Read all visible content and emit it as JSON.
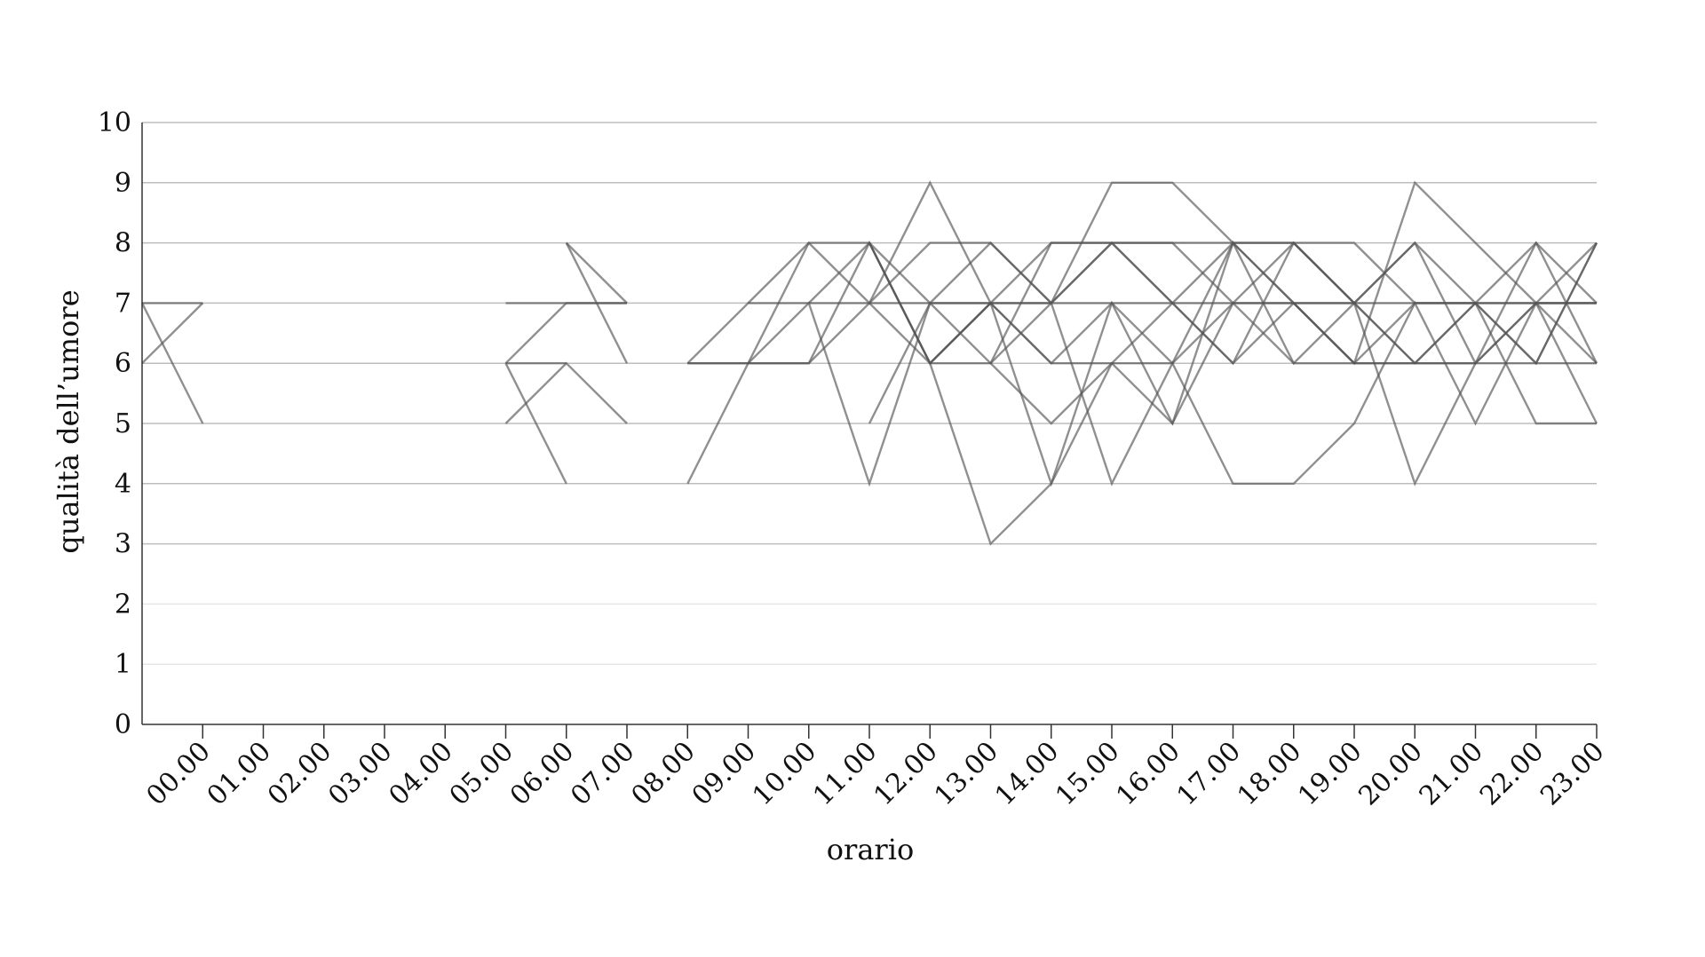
{
  "chart_data": {
    "type": "line",
    "title": "",
    "xlabel": "orario",
    "ylabel": "qualità dell’umore",
    "categories": [
      "00.00",
      "01.00",
      "02.00",
      "03.00",
      "04.00",
      "05.00",
      "06.00",
      "07.00",
      "08.00",
      "09.00",
      "10.00",
      "11.00",
      "12.00",
      "13.00",
      "14.00",
      "15.00",
      "16.00",
      "17.00",
      "18.00",
      "19.00",
      "20.00",
      "21.00",
      "22.00",
      "23.00"
    ],
    "yticks": [
      0,
      1,
      2,
      3,
      4,
      5,
      6,
      7,
      8,
      9,
      10
    ],
    "ylim": [
      0,
      10
    ],
    "grid": true,
    "legend": "none",
    "line_color": "#555555",
    "series": [
      {
        "points": [
          [
            -1,
            7
          ],
          [
            0,
            7
          ]
        ]
      },
      {
        "points": [
          [
            -1,
            6
          ],
          [
            0,
            7
          ]
        ]
      },
      {
        "points": [
          [
            -1,
            7
          ],
          [
            0,
            5
          ]
        ]
      },
      {
        "points": [
          [
            5,
            7
          ],
          [
            7,
            7
          ]
        ]
      },
      {
        "points": [
          [
            5,
            6
          ],
          [
            6,
            7
          ],
          [
            7,
            7
          ]
        ]
      },
      {
        "points": [
          [
            5,
            5
          ],
          [
            6,
            6
          ],
          [
            7,
            5
          ]
        ]
      },
      {
        "points": [
          [
            5,
            6
          ],
          [
            6,
            4
          ]
        ]
      },
      {
        "points": [
          [
            5,
            6
          ],
          [
            6,
            6
          ]
        ]
      },
      {
        "points": [
          [
            6,
            8
          ],
          [
            7,
            6
          ]
        ]
      },
      {
        "points": [
          [
            6,
            8
          ],
          [
            7,
            7
          ]
        ]
      },
      {
        "points": [
          [
            8,
            6
          ],
          [
            10,
            6
          ],
          [
            11,
            7
          ],
          [
            12,
            6
          ],
          [
            13,
            7
          ],
          [
            14,
            6
          ],
          [
            15,
            6
          ],
          [
            16,
            6
          ],
          [
            17,
            7
          ],
          [
            18,
            7
          ],
          [
            19,
            6
          ],
          [
            20,
            6
          ],
          [
            21,
            6
          ],
          [
            22,
            6
          ],
          [
            23,
            6
          ]
        ]
      },
      {
        "points": [
          [
            8,
            6
          ],
          [
            9,
            7
          ],
          [
            10,
            7
          ],
          [
            11,
            7
          ],
          [
            12,
            7
          ],
          [
            13,
            7
          ],
          [
            14,
            7
          ],
          [
            15,
            7
          ],
          [
            16,
            7
          ],
          [
            17,
            7
          ],
          [
            18,
            7
          ],
          [
            19,
            7
          ],
          [
            20,
            7
          ],
          [
            21,
            7
          ],
          [
            22,
            7
          ],
          [
            23,
            7
          ]
        ]
      },
      {
        "points": [
          [
            8,
            4
          ],
          [
            9,
            6
          ],
          [
            10,
            7
          ],
          [
            11,
            4
          ],
          [
            12,
            7
          ],
          [
            13,
            7
          ],
          [
            14,
            7
          ],
          [
            15,
            8
          ],
          [
            16,
            8
          ],
          [
            17,
            7
          ],
          [
            18,
            8
          ],
          [
            19,
            7
          ],
          [
            20,
            8
          ],
          [
            21,
            7
          ],
          [
            22,
            8
          ],
          [
            23,
            6
          ]
        ]
      },
      {
        "points": [
          [
            8,
            6
          ],
          [
            9,
            6
          ],
          [
            10,
            8
          ],
          [
            11,
            8
          ],
          [
            12,
            7
          ],
          [
            13,
            6
          ],
          [
            14,
            7
          ],
          [
            15,
            8
          ],
          [
            16,
            7
          ],
          [
            17,
            8
          ],
          [
            18,
            8
          ],
          [
            19,
            8
          ],
          [
            20,
            7
          ],
          [
            21,
            7
          ],
          [
            22,
            7
          ],
          [
            23,
            8
          ]
        ]
      },
      {
        "points": [
          [
            9,
            7
          ],
          [
            10,
            8
          ],
          [
            11,
            7
          ],
          [
            12,
            9
          ],
          [
            13,
            7
          ],
          [
            14,
            8
          ],
          [
            15,
            8
          ],
          [
            16,
            8
          ],
          [
            17,
            8
          ],
          [
            18,
            7
          ],
          [
            19,
            6
          ],
          [
            20,
            9
          ],
          [
            21,
            8
          ],
          [
            22,
            7
          ],
          [
            23,
            7
          ]
        ]
      },
      {
        "points": [
          [
            9,
            6
          ],
          [
            10,
            6
          ],
          [
            11,
            8
          ],
          [
            12,
            6
          ],
          [
            13,
            7
          ],
          [
            14,
            6
          ],
          [
            15,
            7
          ],
          [
            16,
            6
          ],
          [
            17,
            8
          ],
          [
            18,
            6
          ],
          [
            19,
            7
          ],
          [
            20,
            8
          ],
          [
            21,
            6
          ],
          [
            22,
            7
          ],
          [
            23,
            5
          ]
        ]
      },
      {
        "points": [
          [
            10,
            7
          ],
          [
            11,
            8
          ],
          [
            12,
            6
          ],
          [
            13,
            6
          ],
          [
            14,
            5
          ],
          [
            15,
            6
          ],
          [
            16,
            5
          ],
          [
            17,
            8
          ],
          [
            18,
            7
          ],
          [
            19,
            6
          ],
          [
            20,
            6
          ],
          [
            21,
            7
          ],
          [
            22,
            5
          ],
          [
            23,
            5
          ]
        ]
      },
      {
        "points": [
          [
            11,
            5
          ],
          [
            12,
            7
          ],
          [
            13,
            8
          ],
          [
            14,
            7
          ],
          [
            15,
            4
          ],
          [
            16,
            6
          ],
          [
            17,
            4
          ],
          [
            18,
            4
          ],
          [
            19,
            5
          ],
          [
            20,
            7
          ],
          [
            21,
            5
          ],
          [
            22,
            7
          ],
          [
            23,
            6
          ]
        ]
      },
      {
        "points": [
          [
            11,
            7
          ],
          [
            12,
            8
          ],
          [
            13,
            8
          ],
          [
            14,
            7
          ],
          [
            15,
            9
          ],
          [
            16,
            9
          ],
          [
            17,
            8
          ],
          [
            18,
            8
          ],
          [
            19,
            7
          ],
          [
            20,
            6
          ],
          [
            21,
            7
          ],
          [
            22,
            6
          ],
          [
            23,
            8
          ]
        ]
      },
      {
        "points": [
          [
            11,
            8
          ],
          [
            12,
            6
          ],
          [
            13,
            3
          ],
          [
            14,
            4
          ],
          [
            15,
            6
          ],
          [
            16,
            7
          ],
          [
            17,
            6
          ],
          [
            18,
            8
          ],
          [
            19,
            7
          ],
          [
            20,
            4
          ],
          [
            21,
            6
          ],
          [
            22,
            8
          ],
          [
            23,
            7
          ]
        ]
      },
      {
        "points": [
          [
            12,
            6
          ],
          [
            13,
            7
          ],
          [
            14,
            4
          ],
          [
            15,
            7
          ],
          [
            16,
            5
          ],
          [
            17,
            7
          ],
          [
            18,
            6
          ],
          [
            19,
            6
          ],
          [
            20,
            7
          ],
          [
            21,
            7
          ],
          [
            22,
            6
          ],
          [
            23,
            8
          ]
        ]
      },
      {
        "points": [
          [
            13,
            6
          ],
          [
            14,
            8
          ],
          [
            15,
            8
          ],
          [
            16,
            7
          ],
          [
            17,
            6
          ],
          [
            18,
            7
          ],
          [
            19,
            7
          ],
          [
            20,
            6
          ],
          [
            21,
            6
          ],
          [
            22,
            7
          ],
          [
            23,
            7
          ]
        ]
      }
    ]
  }
}
